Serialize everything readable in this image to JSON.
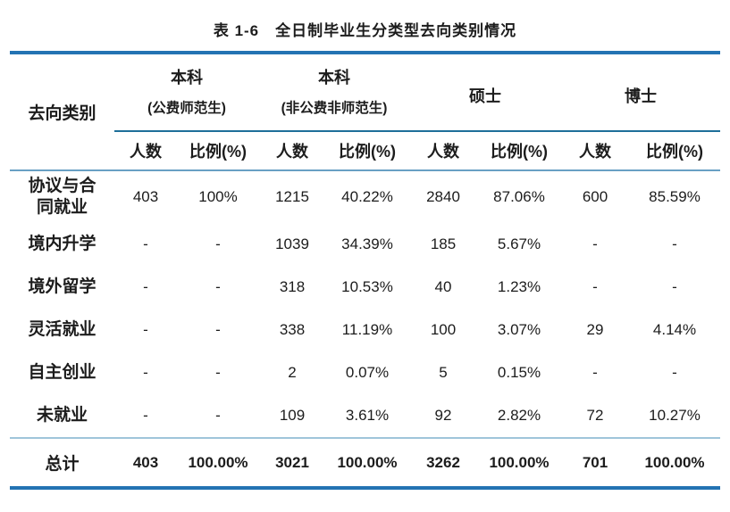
{
  "page": {
    "title": "表 1-6　全日制毕业生分类型去向类别情况"
  },
  "table": {
    "corner_label": "去向类别",
    "groups": [
      {
        "name": "本科",
        "subtitle": "(公费师范生)"
      },
      {
        "name": "本科",
        "subtitle": "(非公费非师范生)"
      },
      {
        "name": "硕士"
      },
      {
        "name": "博士"
      }
    ],
    "col_headers": [
      "人数",
      "比例(%)"
    ],
    "rows": [
      {
        "label": "协议与合同就业",
        "values": [
          "403",
          "100%",
          "1215",
          "40.22%",
          "2840",
          "87.06%",
          "600",
          "85.59%"
        ]
      },
      {
        "label": "境内升学",
        "values": [
          "-",
          "-",
          "1039",
          "34.39%",
          "185",
          "5.67%",
          "-",
          "-"
        ]
      },
      {
        "label": "境外留学",
        "values": [
          "-",
          "-",
          "318",
          "10.53%",
          "40",
          "1.23%",
          "-",
          "-"
        ]
      },
      {
        "label": "灵活就业",
        "values": [
          "-",
          "-",
          "338",
          "11.19%",
          "100",
          "3.07%",
          "29",
          "4.14%"
        ]
      },
      {
        "label": "自主创业",
        "values": [
          "-",
          "-",
          "2",
          "0.07%",
          "5",
          "0.15%",
          "-",
          "-"
        ]
      },
      {
        "label": "未就业",
        "values": [
          "-",
          "-",
          "109",
          "3.61%",
          "92",
          "2.82%",
          "72",
          "10.27%"
        ]
      }
    ],
    "total": {
      "label": "总计",
      "values": [
        "403",
        "100.00%",
        "3021",
        "100.00%",
        "3262",
        "100.00%",
        "701",
        "100.00%"
      ]
    }
  },
  "colors": {
    "rule_thick": "#2373B3",
    "rule_spanner": "#1E6F99",
    "rule_header": "#69A0C4",
    "rule_light": "#9FC5DA",
    "text": "#1C1C1C"
  }
}
